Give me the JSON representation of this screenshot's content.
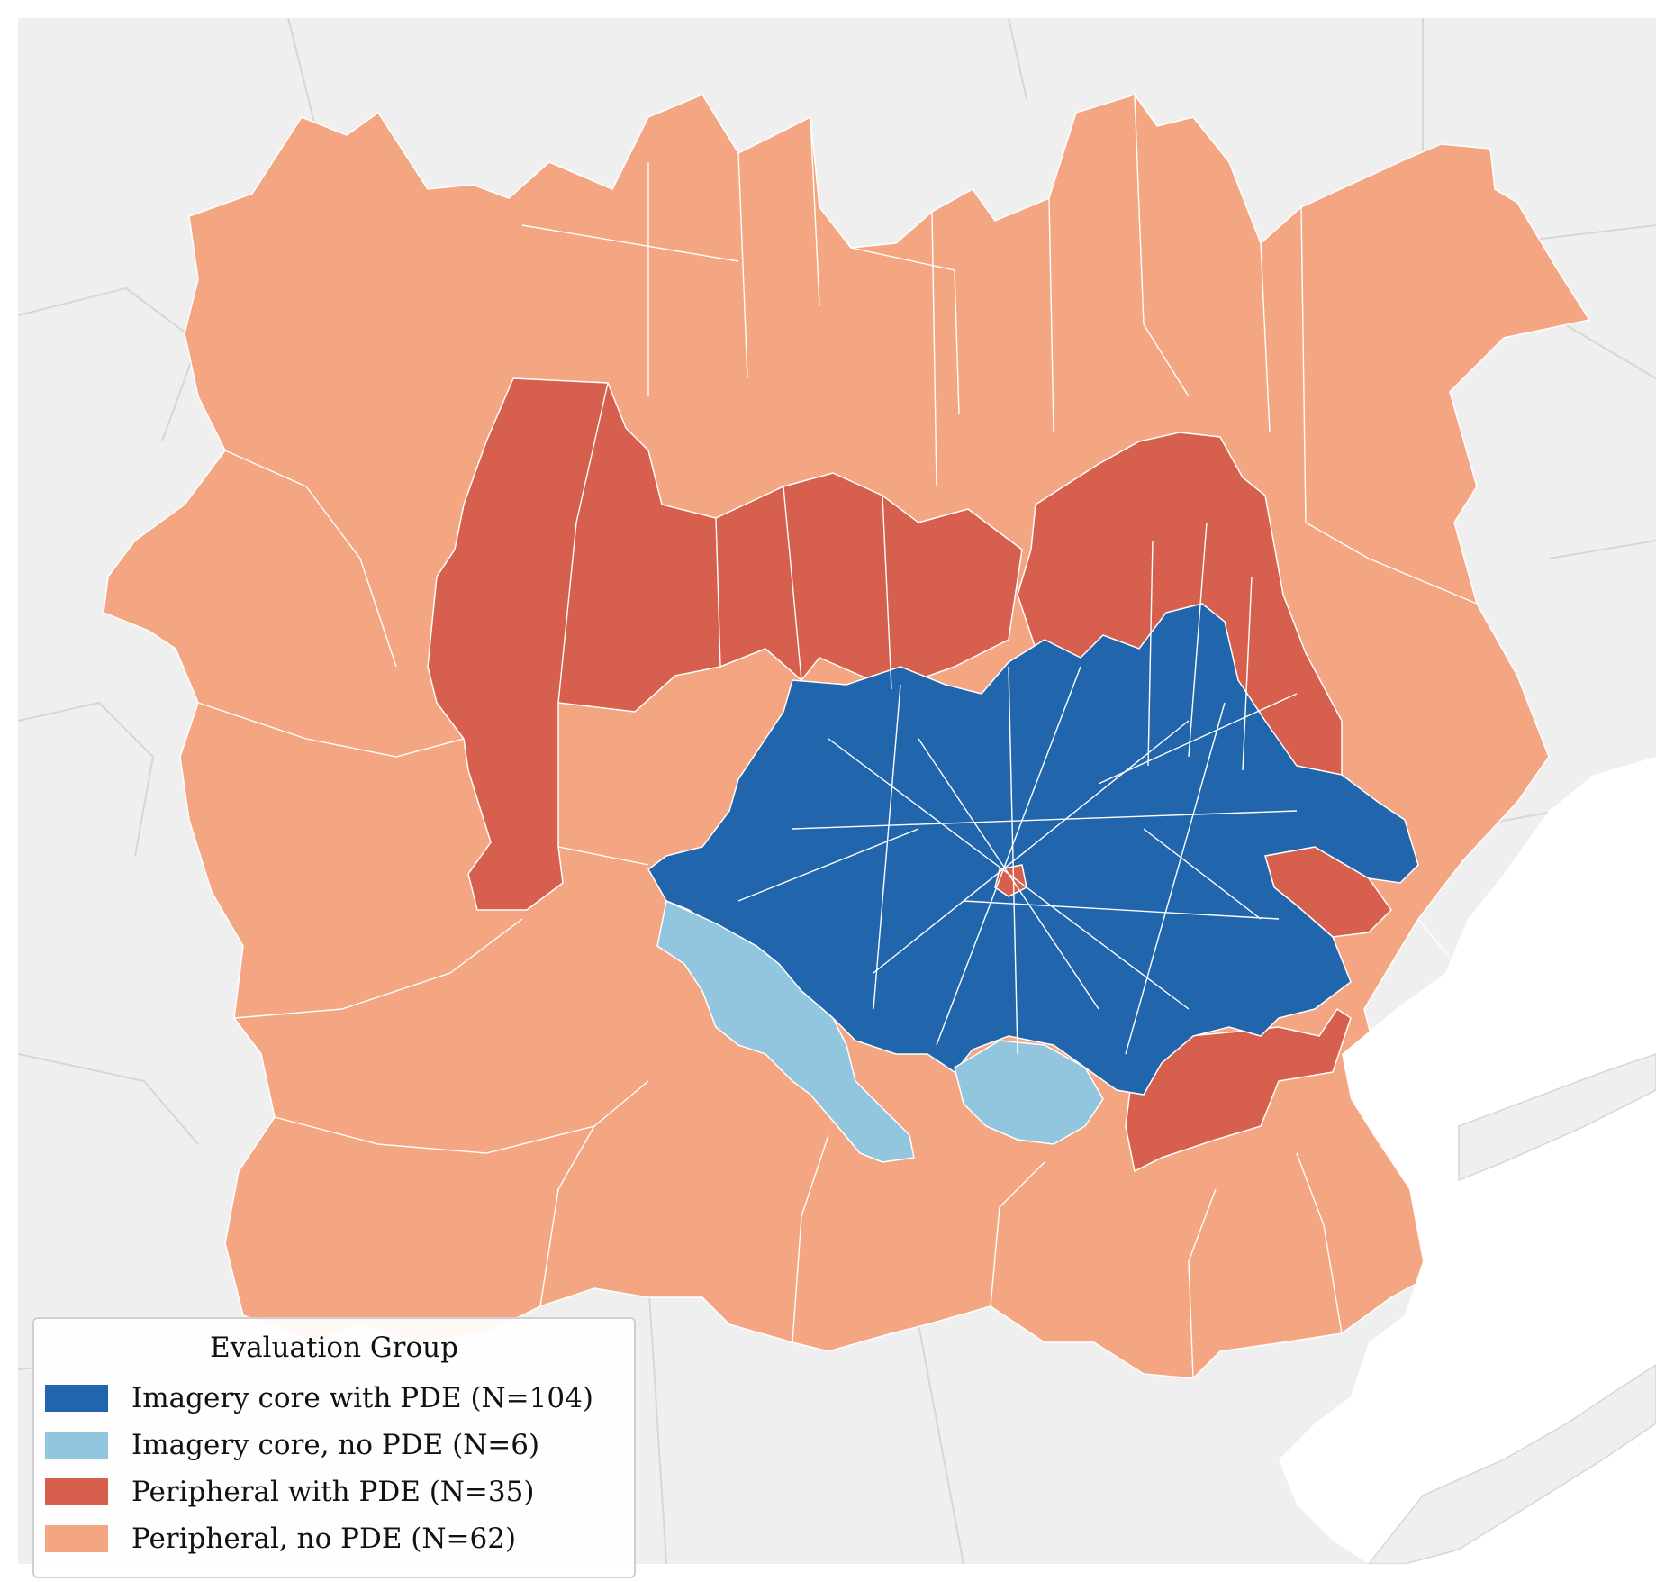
{
  "legend": {
    "title": "Evaluation Group",
    "items": [
      {
        "label": "Imagery core with PDE (N=104)",
        "color": "#2166ac"
      },
      {
        "label": "Imagery core, no PDE (N=6)",
        "color": "#92c5de"
      },
      {
        "label": "Peripheral with PDE (N=35)",
        "color": "#d6604d"
      },
      {
        "label": "Peripheral, no PDE (N=62)",
        "color": "#f4a582"
      }
    ]
  },
  "map": {
    "background_color": "#efefef",
    "water_color": "#ffffff",
    "border_color": "#ffffff"
  }
}
